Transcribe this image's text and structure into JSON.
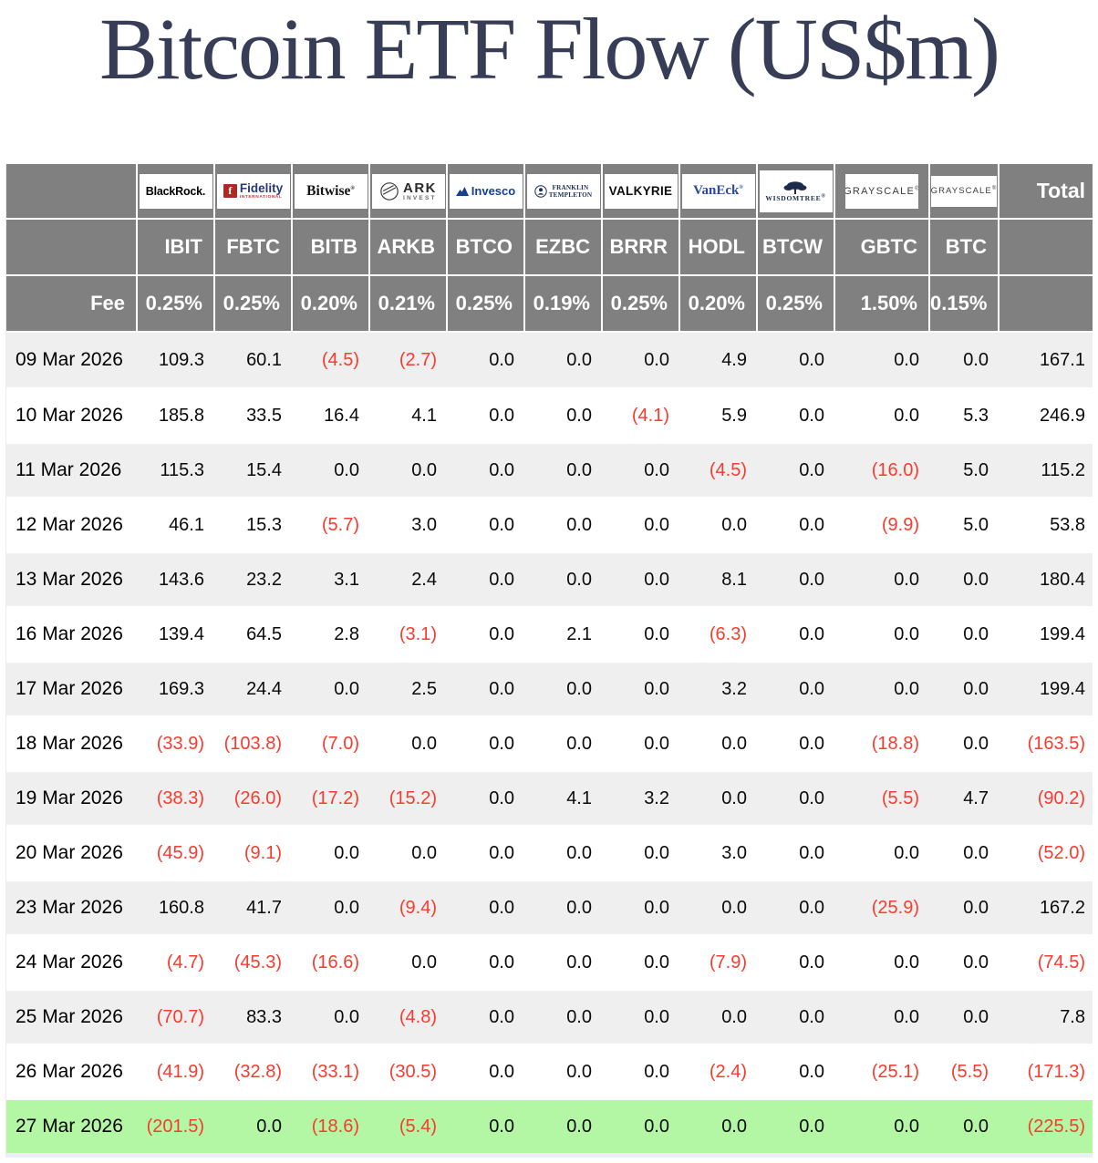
{
  "title": "Bitcoin ETF Flow (US$m)",
  "chart_data": {
    "type": "table",
    "title": "Bitcoin ETF Flow (US$m)",
    "fee_label": "Fee",
    "total_label": "Total",
    "colors": {
      "header_bg": "#808080",
      "alt_row_bg": "#efefef",
      "negative_text": "#f83b2e",
      "highlight_row_bg": "#b3f6a4",
      "title_text": "#373d56"
    },
    "columns": [
      {
        "provider": "BlackRock",
        "ticker": "IBIT",
        "fee": "0.25%",
        "logo": "blackrock",
        "logo_lines": [
          "BlackRock."
        ]
      },
      {
        "provider": "Fidelity International",
        "ticker": "FBTC",
        "fee": "0.25%",
        "logo": "fidelity",
        "logo_lines": [
          "f",
          "Fidelity",
          "INTERNATIONAL"
        ]
      },
      {
        "provider": "Bitwise",
        "ticker": "BITB",
        "fee": "0.20%",
        "logo": "bitwise",
        "logo_lines": [
          "Bitwise®"
        ]
      },
      {
        "provider": "ARK Invest",
        "ticker": "ARKB",
        "fee": "0.21%",
        "logo": "ark",
        "logo_lines": [
          "ARK",
          "INVEST"
        ]
      },
      {
        "provider": "Invesco",
        "ticker": "BTCO",
        "fee": "0.25%",
        "logo": "invesco",
        "logo_lines": [
          "Invesco"
        ]
      },
      {
        "provider": "Franklin Templeton",
        "ticker": "EZBC",
        "fee": "0.19%",
        "logo": "franklin",
        "logo_lines": [
          "FRANKLIN",
          "TEMPLETON"
        ]
      },
      {
        "provider": "Valkyrie",
        "ticker": "BRRR",
        "fee": "0.25%",
        "logo": "valkyrie",
        "logo_lines": [
          "VALKYRIE"
        ]
      },
      {
        "provider": "VanEck",
        "ticker": "HODL",
        "fee": "0.20%",
        "logo": "vaneck",
        "logo_lines": [
          "VanEck®"
        ]
      },
      {
        "provider": "WisdomTree",
        "ticker": "BTCW",
        "fee": "0.25%",
        "logo": "wisdomtree",
        "logo_lines": [
          "WISDOMTREE®"
        ]
      },
      {
        "provider": "Grayscale",
        "ticker": "GBTC",
        "fee": "1.50%",
        "logo": "grayscale",
        "logo_lines": [
          "GRAYSCALE®"
        ]
      },
      {
        "provider": "Grayscale",
        "ticker": "BTC",
        "fee": "0.15%",
        "logo": "grayscale_mini",
        "logo_lines": [
          "GRAYSCALE®"
        ]
      }
    ],
    "rows": [
      {
        "date": "09 Mar 2026",
        "values": [
          109.3,
          60.1,
          -4.5,
          -2.7,
          0,
          0,
          0,
          4.9,
          0,
          0,
          0
        ],
        "total": 167.1
      },
      {
        "date": "10 Mar 2026",
        "values": [
          185.8,
          33.5,
          16.4,
          4.1,
          0,
          0,
          -4.1,
          5.9,
          0,
          0,
          5.3
        ],
        "total": 246.9
      },
      {
        "date": "11 Mar 2026",
        "values": [
          115.3,
          15.4,
          0,
          0,
          0,
          0,
          0,
          -4.5,
          0,
          -16,
          5
        ],
        "total": 115.2
      },
      {
        "date": "12 Mar 2026",
        "values": [
          46.1,
          15.3,
          -5.7,
          3,
          0,
          0,
          0,
          0,
          0,
          -9.9,
          5
        ],
        "total": 53.8
      },
      {
        "date": "13 Mar 2026",
        "values": [
          143.6,
          23.2,
          3.1,
          2.4,
          0,
          0,
          0,
          8.1,
          0,
          0,
          0
        ],
        "total": 180.4
      },
      {
        "date": "16 Mar 2026",
        "values": [
          139.4,
          64.5,
          2.8,
          -3.1,
          0,
          2.1,
          0,
          -6.3,
          0,
          0,
          0
        ],
        "total": 199.4
      },
      {
        "date": "17 Mar 2026",
        "values": [
          169.3,
          24.4,
          0,
          2.5,
          0,
          0,
          0,
          3.2,
          0,
          0,
          0
        ],
        "total": 199.4
      },
      {
        "date": "18 Mar 2026",
        "values": [
          -33.9,
          -103.8,
          -7,
          0,
          0,
          0,
          0,
          0,
          0,
          -18.8,
          0
        ],
        "total": -163.5
      },
      {
        "date": "19 Mar 2026",
        "values": [
          -38.3,
          -26,
          -17.2,
          -15.2,
          0,
          4.1,
          3.2,
          0,
          0,
          -5.5,
          4.7
        ],
        "total": -90.2
      },
      {
        "date": "20 Mar 2026",
        "values": [
          -45.9,
          -9.1,
          0,
          0,
          0,
          0,
          0,
          3,
          0,
          0,
          0
        ],
        "total": -52
      },
      {
        "date": "23 Mar 2026",
        "values": [
          160.8,
          41.7,
          0,
          -9.4,
          0,
          0,
          0,
          0,
          0,
          -25.9,
          0
        ],
        "total": 167.2
      },
      {
        "date": "24 Mar 2026",
        "values": [
          -4.7,
          -45.3,
          -16.6,
          0,
          0,
          0,
          0,
          -7.9,
          0,
          0,
          0
        ],
        "total": -74.5
      },
      {
        "date": "25 Mar 2026",
        "values": [
          -70.7,
          83.3,
          0,
          -4.8,
          0,
          0,
          0,
          0,
          0,
          0,
          0
        ],
        "total": 7.8
      },
      {
        "date": "26 Mar 2026",
        "values": [
          -41.9,
          -32.8,
          -33.1,
          -30.5,
          0,
          0,
          0,
          -2.4,
          0,
          -25.1,
          -5.5
        ],
        "total": -171.3
      },
      {
        "date": "27 Mar 2026",
        "values": [
          -201.5,
          0,
          -18.6,
          -5.4,
          0,
          0,
          0,
          0,
          0,
          0,
          0
        ],
        "total": -225.5,
        "highlight": true
      }
    ]
  }
}
